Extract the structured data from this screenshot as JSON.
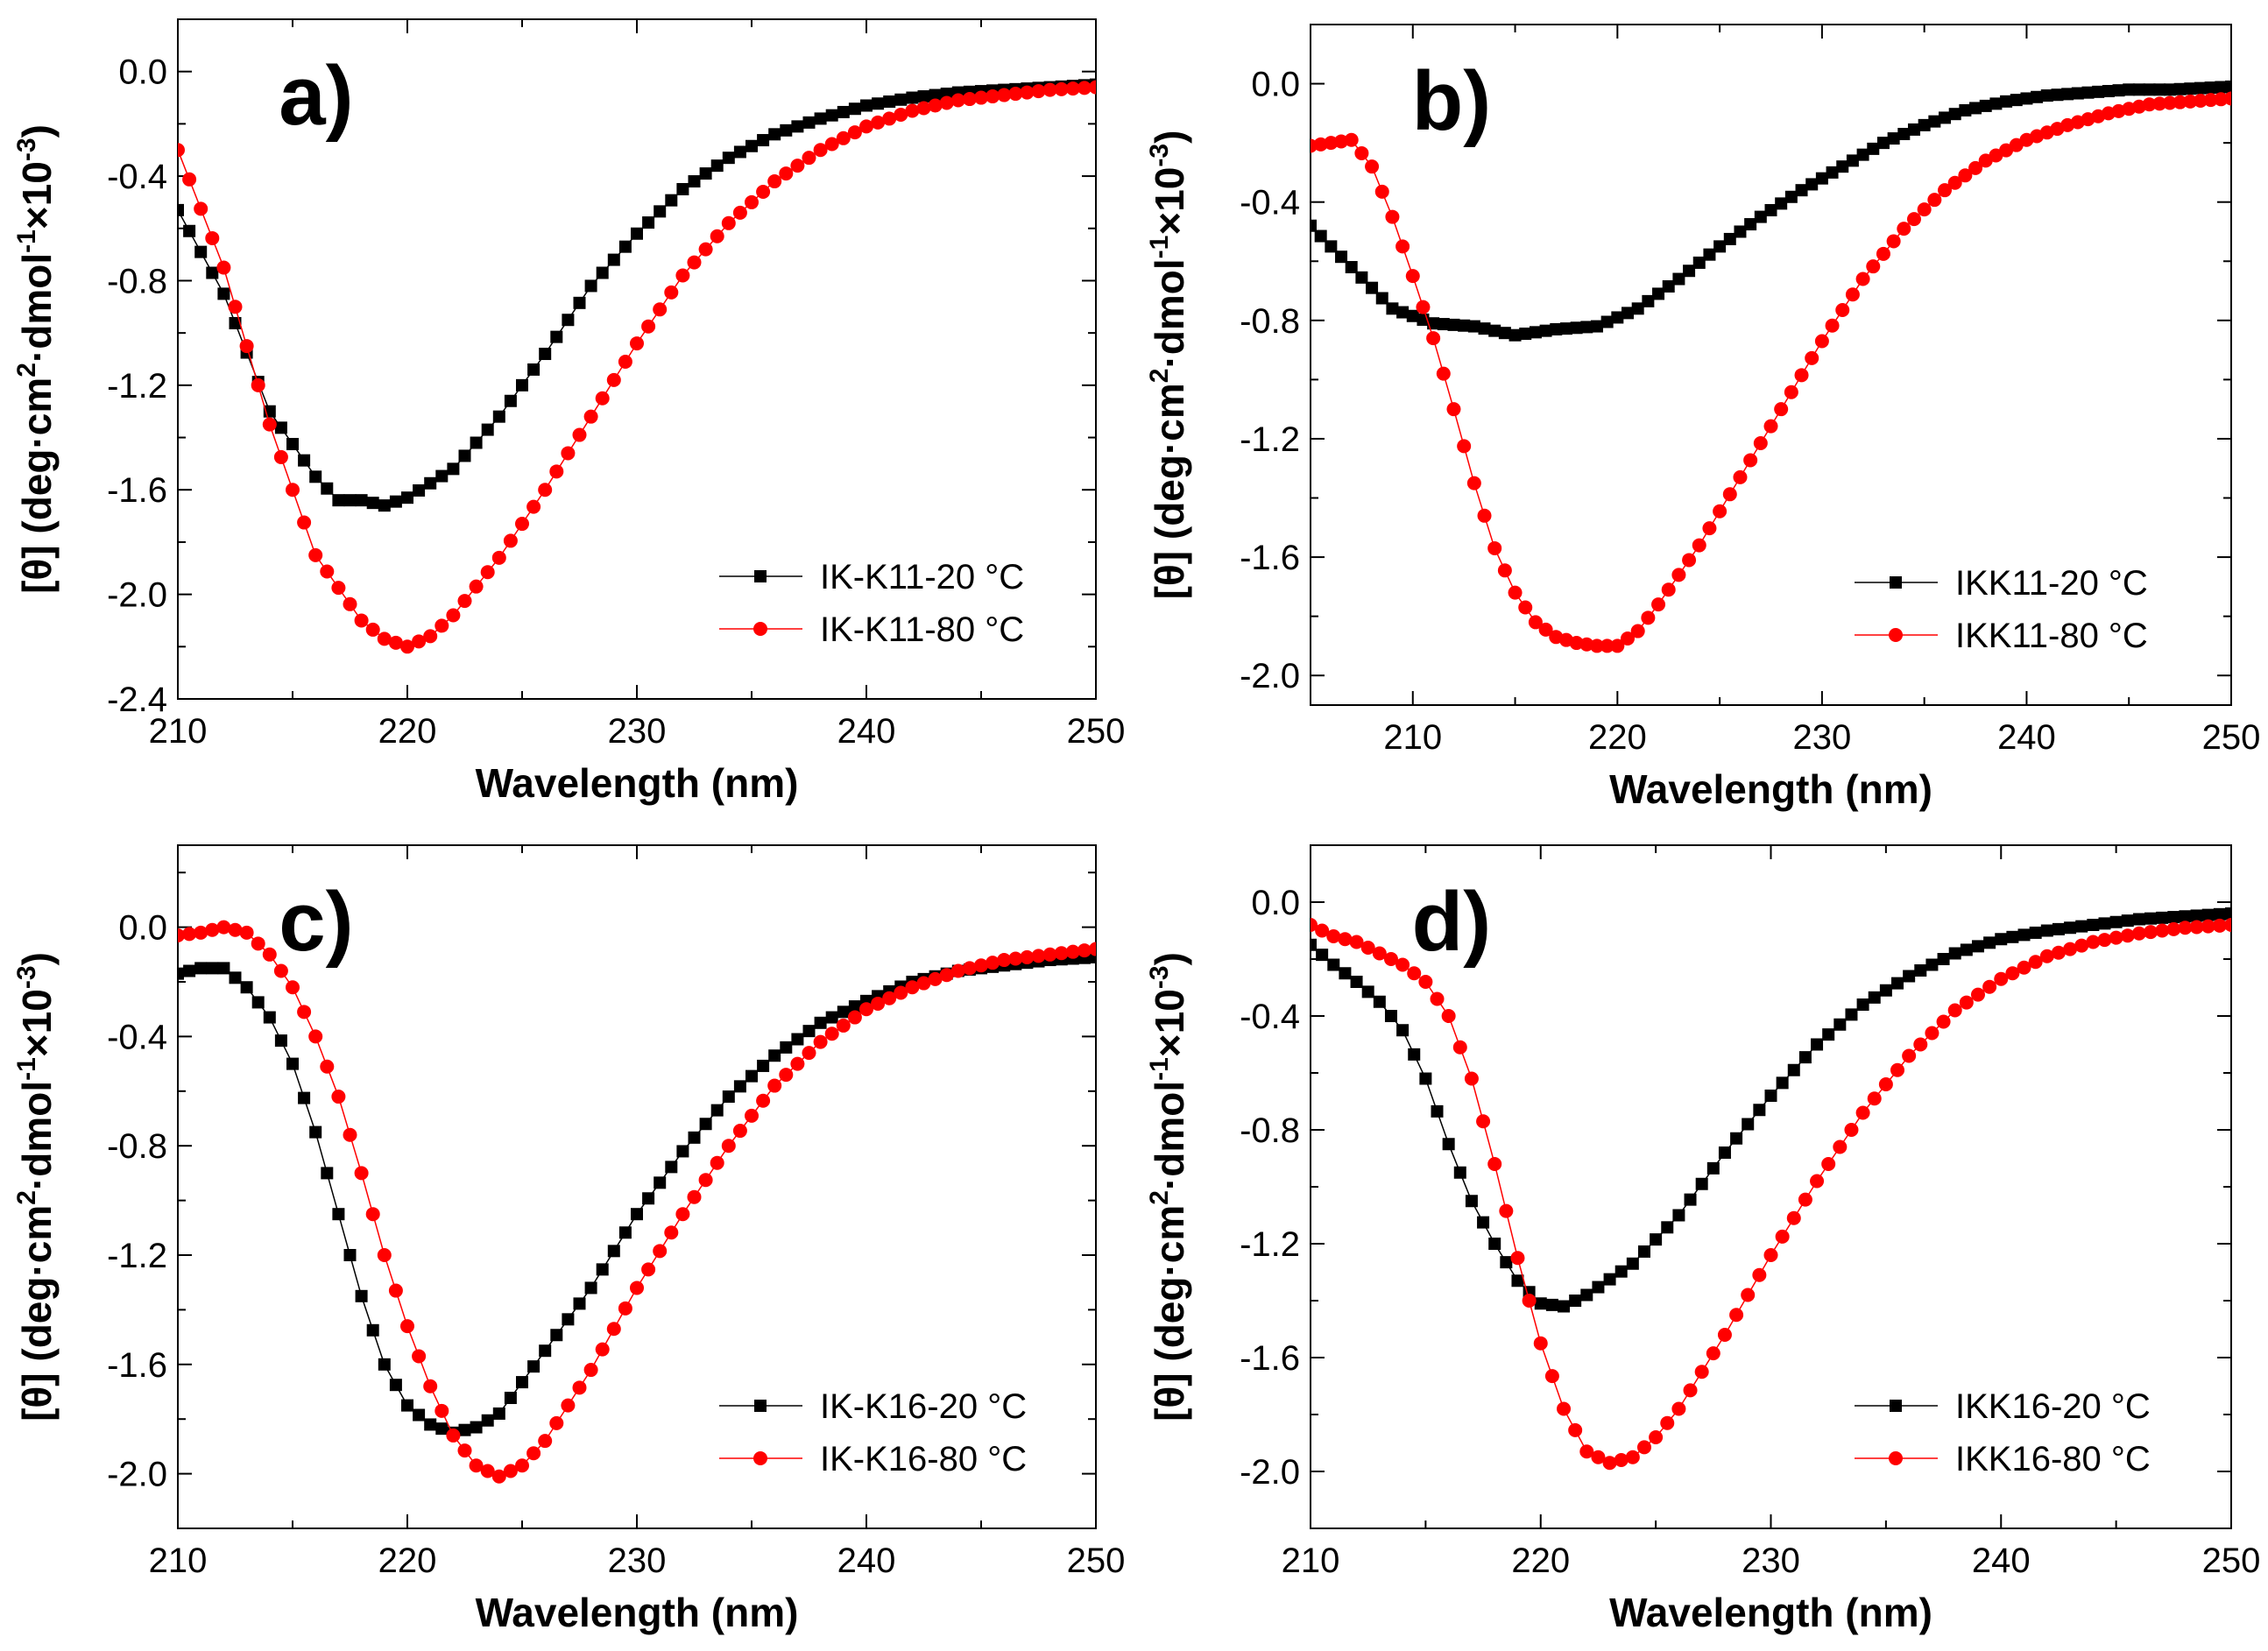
{
  "figure": {
    "y_label_parts": [
      "[θ] (deg·cm",
      "2",
      "·dmol",
      "-1",
      "×10",
      "-3",
      ")"
    ]
  },
  "chart_data": [
    {
      "type": "line",
      "panel": "a)",
      "xlabel": "Wavelength (nm)",
      "xlim": [
        210,
        250
      ],
      "ylim": [
        -2.4,
        0.2
      ],
      "xticks": [
        "210",
        "220",
        "230",
        "240",
        "250"
      ],
      "yticks": [
        "0.0",
        "-0.4",
        "-0.8",
        "-1.2",
        "-1.6",
        "-2.0",
        "-2.4"
      ],
      "legend_position": "bottom-right",
      "series": [
        {
          "name": "IK-K11-20 °C",
          "marker": "square",
          "color": "#000000",
          "keypoints": [
            [
              210,
              -0.53
            ],
            [
              212,
              -0.85
            ],
            [
              214,
              -1.3
            ],
            [
              216,
              -1.55
            ],
            [
              217,
              -1.64
            ],
            [
              218,
              -1.64
            ],
            [
              219,
              -1.66
            ],
            [
              220,
              -1.63
            ],
            [
              222,
              -1.52
            ],
            [
              224,
              -1.32
            ],
            [
              226,
              -1.08
            ],
            [
              228,
              -0.82
            ],
            [
              230,
              -0.62
            ],
            [
              232,
              -0.45
            ],
            [
              234,
              -0.33
            ],
            [
              236,
              -0.24
            ],
            [
              238,
              -0.18
            ],
            [
              240,
              -0.13
            ],
            [
              242,
              -0.1
            ],
            [
              244,
              -0.08
            ],
            [
              246,
              -0.07
            ],
            [
              248,
              -0.06
            ],
            [
              250,
              -0.05
            ]
          ]
        },
        {
          "name": "IK-K11-80 °C",
          "marker": "circle",
          "color": "#ff0000",
          "keypoints": [
            [
              210,
              -0.3
            ],
            [
              212,
              -0.75
            ],
            [
              214,
              -1.35
            ],
            [
              216,
              -1.85
            ],
            [
              218,
              -2.1
            ],
            [
              219,
              -2.17
            ],
            [
              220,
              -2.2
            ],
            [
              221,
              -2.16
            ],
            [
              222,
              -2.08
            ],
            [
              224,
              -1.86
            ],
            [
              226,
              -1.6
            ],
            [
              228,
              -1.32
            ],
            [
              230,
              -1.04
            ],
            [
              232,
              -0.78
            ],
            [
              234,
              -0.58
            ],
            [
              236,
              -0.42
            ],
            [
              238,
              -0.3
            ],
            [
              240,
              -0.21
            ],
            [
              242,
              -0.15
            ],
            [
              244,
              -0.11
            ],
            [
              246,
              -0.09
            ],
            [
              248,
              -0.07
            ],
            [
              250,
              -0.06
            ]
          ]
        }
      ]
    },
    {
      "type": "line",
      "panel": "b)",
      "xlabel": "Wavelength (nm)",
      "xlim": [
        205,
        250
      ],
      "ylim": [
        -2.1,
        0.2
      ],
      "xticks": [
        "210",
        "220",
        "230",
        "240",
        "250"
      ],
      "yticks": [
        "0.0",
        "-0.4",
        "-0.8",
        "-1.2",
        "-1.6",
        "-2.0"
      ],
      "legend_position": "bottom-right",
      "series": [
        {
          "name": "IKK11-20 °C",
          "marker": "square",
          "color": "#000000",
          "keypoints": [
            [
              205,
              -0.48
            ],
            [
              207,
              -0.62
            ],
            [
              209,
              -0.76
            ],
            [
              211,
              -0.81
            ],
            [
              213,
              -0.82
            ],
            [
              215,
              -0.85
            ],
            [
              217,
              -0.83
            ],
            [
              219,
              -0.82
            ],
            [
              221,
              -0.76
            ],
            [
              223,
              -0.66
            ],
            [
              225,
              -0.55
            ],
            [
              227,
              -0.45
            ],
            [
              229,
              -0.36
            ],
            [
              231,
              -0.28
            ],
            [
              233,
              -0.2
            ],
            [
              235,
              -0.14
            ],
            [
              237,
              -0.09
            ],
            [
              239,
              -0.06
            ],
            [
              241,
              -0.04
            ],
            [
              243,
              -0.03
            ],
            [
              245,
              -0.02
            ],
            [
              247,
              -0.02
            ],
            [
              250,
              -0.01
            ]
          ]
        },
        {
          "name": "IKK11-80 °C",
          "marker": "circle",
          "color": "#ff0000",
          "keypoints": [
            [
              205,
              -0.21
            ],
            [
              206,
              -0.2
            ],
            [
              207,
              -0.19
            ],
            [
              208,
              -0.28
            ],
            [
              209,
              -0.45
            ],
            [
              210,
              -0.65
            ],
            [
              211,
              -0.86
            ],
            [
              212,
              -1.1
            ],
            [
              213,
              -1.35
            ],
            [
              214,
              -1.57
            ],
            [
              215,
              -1.72
            ],
            [
              216,
              -1.82
            ],
            [
              217,
              -1.87
            ],
            [
              218,
              -1.89
            ],
            [
              219,
              -1.9
            ],
            [
              220,
              -1.9
            ],
            [
              221,
              -1.85
            ],
            [
              222,
              -1.76
            ],
            [
              224,
              -1.56
            ],
            [
              226,
              -1.33
            ],
            [
              228,
              -1.1
            ],
            [
              230,
              -0.87
            ],
            [
              232,
              -0.66
            ],
            [
              234,
              -0.49
            ],
            [
              236,
              -0.36
            ],
            [
              238,
              -0.26
            ],
            [
              240,
              -0.19
            ],
            [
              242,
              -0.14
            ],
            [
              244,
              -0.1
            ],
            [
              246,
              -0.07
            ],
            [
              248,
              -0.06
            ],
            [
              250,
              -0.05
            ]
          ]
        }
      ]
    },
    {
      "type": "line",
      "panel": "c)",
      "xlabel": "Wavelength (nm)",
      "xlim": [
        210,
        250
      ],
      "ylim": [
        -2.2,
        0.3
      ],
      "xticks": [
        "210",
        "220",
        "230",
        "240",
        "250"
      ],
      "yticks": [
        "0.0",
        "-0.4",
        "-0.8",
        "-1.2",
        "-1.6",
        "-2.0"
      ],
      "legend_position": "bottom-right",
      "series": [
        {
          "name": "IK-K16-20 °C",
          "marker": "square",
          "color": "#000000",
          "keypoints": [
            [
              210,
              -0.17
            ],
            [
              211,
              -0.15
            ],
            [
              212,
              -0.15
            ],
            [
              213,
              -0.22
            ],
            [
              214,
              -0.33
            ],
            [
              215,
              -0.5
            ],
            [
              216,
              -0.75
            ],
            [
              217,
              -1.05
            ],
            [
              218,
              -1.35
            ],
            [
              219,
              -1.6
            ],
            [
              220,
              -1.75
            ],
            [
              221,
              -1.82
            ],
            [
              222,
              -1.85
            ],
            [
              223,
              -1.83
            ],
            [
              224,
              -1.78
            ],
            [
              226,
              -1.55
            ],
            [
              228,
              -1.32
            ],
            [
              230,
              -1.05
            ],
            [
              232,
              -0.82
            ],
            [
              234,
              -0.62
            ],
            [
              236,
              -0.47
            ],
            [
              238,
              -0.35
            ],
            [
              240,
              -0.27
            ],
            [
              242,
              -0.2
            ],
            [
              244,
              -0.16
            ],
            [
              246,
              -0.14
            ],
            [
              248,
              -0.12
            ],
            [
              250,
              -0.11
            ]
          ]
        },
        {
          "name": "IK-K16-80 °C",
          "marker": "circle",
          "color": "#ff0000",
          "keypoints": [
            [
              210,
              -0.03
            ],
            [
              211,
              -0.02
            ],
            [
              212,
              0.0
            ],
            [
              213,
              -0.02
            ],
            [
              214,
              -0.1
            ],
            [
              215,
              -0.22
            ],
            [
              216,
              -0.4
            ],
            [
              217,
              -0.62
            ],
            [
              218,
              -0.9
            ],
            [
              219,
              -1.2
            ],
            [
              220,
              -1.46
            ],
            [
              221,
              -1.68
            ],
            [
              222,
              -1.86
            ],
            [
              223,
              -1.97
            ],
            [
              224,
              -2.01
            ],
            [
              225,
              -1.97
            ],
            [
              226,
              -1.88
            ],
            [
              228,
              -1.62
            ],
            [
              230,
              -1.32
            ],
            [
              232,
              -1.05
            ],
            [
              234,
              -0.8
            ],
            [
              236,
              -0.58
            ],
            [
              238,
              -0.42
            ],
            [
              240,
              -0.3
            ],
            [
              242,
              -0.22
            ],
            [
              244,
              -0.16
            ],
            [
              246,
              -0.12
            ],
            [
              248,
              -0.1
            ],
            [
              250,
              -0.08
            ]
          ]
        }
      ]
    },
    {
      "type": "line",
      "panel": "d)",
      "xlabel": "Wavelength (nm)",
      "xlim": [
        210,
        250
      ],
      "ylim": [
        -2.2,
        0.2
      ],
      "xticks": [
        "210",
        "220",
        "230",
        "240",
        "250"
      ],
      "yticks": [
        "0.0",
        "-0.4",
        "-0.8",
        "-1.2",
        "-1.6",
        "-2.0"
      ],
      "legend_position": "bottom-right",
      "series": [
        {
          "name": "IKK16-20 °C",
          "marker": "square",
          "color": "#000000",
          "keypoints": [
            [
              210,
              -0.15
            ],
            [
              211,
              -0.22
            ],
            [
              212,
              -0.28
            ],
            [
              213,
              -0.35
            ],
            [
              214,
              -0.45
            ],
            [
              215,
              -0.62
            ],
            [
              216,
              -0.85
            ],
            [
              217,
              -1.05
            ],
            [
              218,
              -1.2
            ],
            [
              219,
              -1.33
            ],
            [
              220,
              -1.41
            ],
            [
              221,
              -1.42
            ],
            [
              222,
              -1.38
            ],
            [
              224,
              -1.27
            ],
            [
              226,
              -1.1
            ],
            [
              228,
              -0.88
            ],
            [
              230,
              -0.68
            ],
            [
              232,
              -0.5
            ],
            [
              234,
              -0.36
            ],
            [
              236,
              -0.26
            ],
            [
              238,
              -0.18
            ],
            [
              240,
              -0.13
            ],
            [
              242,
              -0.1
            ],
            [
              244,
              -0.08
            ],
            [
              246,
              -0.06
            ],
            [
              248,
              -0.05
            ],
            [
              250,
              -0.04
            ]
          ]
        },
        {
          "name": "IKK16-80 °C",
          "marker": "circle",
          "color": "#ff0000",
          "keypoints": [
            [
              210,
              -0.08
            ],
            [
              211,
              -0.12
            ],
            [
              212,
              -0.14
            ],
            [
              213,
              -0.18
            ],
            [
              214,
              -0.22
            ],
            [
              215,
              -0.28
            ],
            [
              216,
              -0.4
            ],
            [
              217,
              -0.62
            ],
            [
              218,
              -0.92
            ],
            [
              219,
              -1.25
            ],
            [
              220,
              -1.55
            ],
            [
              221,
              -1.78
            ],
            [
              222,
              -1.93
            ],
            [
              223,
              -1.97
            ],
            [
              224,
              -1.95
            ],
            [
              225,
              -1.88
            ],
            [
              226,
              -1.78
            ],
            [
              228,
              -1.52
            ],
            [
              230,
              -1.24
            ],
            [
              232,
              -0.98
            ],
            [
              234,
              -0.74
            ],
            [
              236,
              -0.54
            ],
            [
              238,
              -0.38
            ],
            [
              240,
              -0.27
            ],
            [
              242,
              -0.19
            ],
            [
              244,
              -0.14
            ],
            [
              246,
              -0.11
            ],
            [
              248,
              -0.09
            ],
            [
              250,
              -0.08
            ]
          ]
        }
      ]
    }
  ]
}
